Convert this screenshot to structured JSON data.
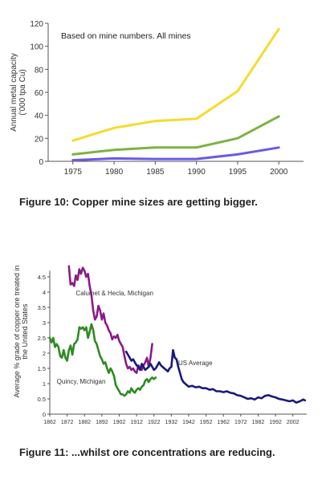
{
  "chart_data": [
    {
      "type": "line",
      "annotation": "Based on mine numbers. All mines",
      "ylabel": "Annual metal capacity ('000 tpa Cu)",
      "xlabel": "",
      "x": [
        1975,
        1980,
        1985,
        1990,
        1995,
        2000
      ],
      "xlim": [
        1972,
        2003
      ],
      "ylim": [
        0,
        120
      ],
      "x_ticks": [
        1975,
        1980,
        1985,
        1990,
        1995,
        2000
      ],
      "y_ticks": [
        0,
        20,
        40,
        60,
        80,
        100,
        120
      ],
      "grid": false,
      "legend": "none",
      "series": [
        {
          "color": "#f5dc2c",
          "values": [
            18,
            29,
            35,
            37,
            61,
            115
          ]
        },
        {
          "color": "#7cb342",
          "values": [
            6,
            10,
            12,
            12,
            20,
            39
          ]
        },
        {
          "color": "#6a5ae6",
          "values": [
            1,
            2.5,
            2,
            2,
            6,
            12
          ]
        }
      ]
    },
    {
      "type": "line",
      "ylabel": "Average % grade of copper ore treated in the United States",
      "xlabel": "",
      "xlim": [
        1862,
        2010
      ],
      "ylim": [
        0,
        5
      ],
      "x_ticks": [
        1862,
        1872,
        1882,
        1892,
        1902,
        1912,
        1922,
        1932,
        1942,
        1952,
        1962,
        1972,
        1982,
        1992,
        2002
      ],
      "y_ticks": [
        0,
        0.5,
        1,
        1.5,
        2,
        2.5,
        3,
        3.5,
        4,
        4.5
      ],
      "grid": false,
      "legend": "none",
      "series": [
        {
          "name": "Calumet & Hecla, Michigan",
          "color": "#8b1a8b",
          "points": [
            [
              1873,
              4.85
            ],
            [
              1874,
              4.25
            ],
            [
              1875,
              4.3
            ],
            [
              1876,
              4.2
            ],
            [
              1877,
              4.55
            ],
            [
              1878,
              4.4
            ],
            [
              1879,
              4.75
            ],
            [
              1880,
              4.6
            ],
            [
              1881,
              4.8
            ],
            [
              1882,
              4.7
            ],
            [
              1883,
              4.5
            ],
            [
              1884,
              4.6
            ],
            [
              1885,
              4.2
            ],
            [
              1886,
              3.9
            ],
            [
              1887,
              3.4
            ],
            [
              1888,
              3.1
            ],
            [
              1889,
              3.2
            ],
            [
              1890,
              3.55
            ],
            [
              1891,
              3.4
            ],
            [
              1892,
              3.1
            ],
            [
              1893,
              3.3
            ],
            [
              1894,
              3.0
            ],
            [
              1895,
              2.9
            ],
            [
              1896,
              2.75
            ],
            [
              1897,
              2.65
            ],
            [
              1898,
              2.45
            ],
            [
              1899,
              2.55
            ],
            [
              1900,
              2.5
            ],
            [
              1901,
              2.6
            ],
            [
              1902,
              2.4
            ],
            [
              1903,
              2.3
            ],
            [
              1904,
              2.2
            ],
            [
              1905,
              1.9
            ],
            [
              1906,
              1.65
            ],
            [
              1907,
              1.5
            ],
            [
              1908,
              1.55
            ],
            [
              1909,
              1.45
            ],
            [
              1910,
              1.5
            ],
            [
              1911,
              1.4
            ],
            [
              1912,
              1.35
            ],
            [
              1913,
              1.6
            ],
            [
              1914,
              1.5
            ],
            [
              1915,
              1.45
            ],
            [
              1916,
              1.6
            ],
            [
              1917,
              1.7
            ],
            [
              1918,
              1.85
            ],
            [
              1919,
              1.55
            ],
            [
              1920,
              1.85
            ],
            [
              1921,
              2.3
            ]
          ]
        },
        {
          "name": "Quincy, Michigan",
          "color": "#2e8b22",
          "points": [
            [
              1862,
              2.5
            ],
            [
              1863,
              2.35
            ],
            [
              1864,
              2.5
            ],
            [
              1865,
              2.2
            ],
            [
              1866,
              2.3
            ],
            [
              1867,
              2.2
            ],
            [
              1868,
              1.9
            ],
            [
              1869,
              1.85
            ],
            [
              1870,
              2.1
            ],
            [
              1871,
              1.85
            ],
            [
              1872,
              1.75
            ],
            [
              1873,
              2.1
            ],
            [
              1874,
              2.25
            ],
            [
              1875,
              1.95
            ],
            [
              1876,
              2.3
            ],
            [
              1877,
              2.35
            ],
            [
              1878,
              2.45
            ],
            [
              1879,
              2.85
            ],
            [
              1880,
              2.8
            ],
            [
              1881,
              2.85
            ],
            [
              1882,
              2.75
            ],
            [
              1883,
              2.85
            ],
            [
              1884,
              2.5
            ],
            [
              1885,
              2.7
            ],
            [
              1886,
              2.95
            ],
            [
              1887,
              2.75
            ],
            [
              1888,
              2.4
            ],
            [
              1889,
              2.3
            ],
            [
              1890,
              2.1
            ],
            [
              1891,
              1.9
            ],
            [
              1892,
              1.8
            ],
            [
              1893,
              1.65
            ],
            [
              1894,
              1.7
            ],
            [
              1895,
              1.5
            ],
            [
              1896,
              1.35
            ],
            [
              1897,
              1.5
            ],
            [
              1898,
              1.4
            ],
            [
              1899,
              1.25
            ],
            [
              1900,
              0.95
            ],
            [
              1901,
              0.85
            ],
            [
              1902,
              0.75
            ],
            [
              1903,
              0.65
            ],
            [
              1904,
              0.65
            ],
            [
              1905,
              0.6
            ],
            [
              1906,
              0.65
            ],
            [
              1907,
              0.75
            ],
            [
              1908,
              0.7
            ],
            [
              1909,
              0.85
            ],
            [
              1910,
              0.75
            ],
            [
              1911,
              0.7
            ],
            [
              1912,
              0.8
            ],
            [
              1913,
              0.85
            ],
            [
              1914,
              0.8
            ],
            [
              1915,
              0.9
            ],
            [
              1916,
              0.95
            ],
            [
              1917,
              1.1
            ],
            [
              1918,
              1.15
            ],
            [
              1919,
              1.05
            ],
            [
              1920,
              1.15
            ],
            [
              1921,
              1.2
            ],
            [
              1922,
              1.15
            ],
            [
              1923,
              1.2
            ]
          ]
        },
        {
          "name": "US Average",
          "color": "#1a1a7a",
          "points": [
            [
              1906,
              2.05
            ],
            [
              1907,
              1.95
            ],
            [
              1908,
              1.85
            ],
            [
              1909,
              1.75
            ],
            [
              1910,
              1.8
            ],
            [
              1911,
              1.7
            ],
            [
              1912,
              1.6
            ],
            [
              1913,
              1.55
            ],
            [
              1914,
              1.45
            ],
            [
              1915,
              1.65
            ],
            [
              1916,
              1.55
            ],
            [
              1917,
              1.45
            ],
            [
              1918,
              1.5
            ],
            [
              1919,
              1.55
            ],
            [
              1920,
              1.65
            ],
            [
              1921,
              1.55
            ],
            [
              1922,
              1.45
            ],
            [
              1923,
              1.5
            ],
            [
              1924,
              1.6
            ],
            [
              1925,
              1.7
            ],
            [
              1926,
              1.6
            ],
            [
              1927,
              1.55
            ],
            [
              1928,
              1.5
            ],
            [
              1929,
              1.45
            ],
            [
              1930,
              1.4
            ],
            [
              1931,
              1.5
            ],
            [
              1932,
              1.55
            ],
            [
              1933,
              2.1
            ],
            [
              1934,
              1.85
            ],
            [
              1935,
              1.8
            ],
            [
              1936,
              1.55
            ],
            [
              1937,
              1.35
            ],
            [
              1938,
              1.15
            ],
            [
              1939,
              1.05
            ],
            [
              1940,
              1.0
            ],
            [
              1941,
              0.95
            ],
            [
              1942,
              0.9
            ],
            [
              1944,
              0.93
            ],
            [
              1946,
              0.88
            ],
            [
              1948,
              0.9
            ],
            [
              1950,
              0.85
            ],
            [
              1952,
              0.85
            ],
            [
              1954,
              0.8
            ],
            [
              1956,
              0.82
            ],
            [
              1958,
              0.75
            ],
            [
              1960,
              0.75
            ],
            [
              1962,
              0.72
            ],
            [
              1964,
              0.75
            ],
            [
              1966,
              0.7
            ],
            [
              1968,
              0.68
            ],
            [
              1970,
              0.62
            ],
            [
              1972,
              0.6
            ],
            [
              1974,
              0.55
            ],
            [
              1976,
              0.5
            ],
            [
              1978,
              0.52
            ],
            [
              1980,
              0.48
            ],
            [
              1982,
              0.55
            ],
            [
              1984,
              0.52
            ],
            [
              1986,
              0.6
            ],
            [
              1988,
              0.62
            ],
            [
              1990,
              0.58
            ],
            [
              1992,
              0.55
            ],
            [
              1994,
              0.5
            ],
            [
              1996,
              0.48
            ],
            [
              1998,
              0.45
            ],
            [
              2000,
              0.42
            ],
            [
              2002,
              0.45
            ],
            [
              2004,
              0.38
            ],
            [
              2006,
              0.42
            ],
            [
              2008,
              0.48
            ],
            [
              2009,
              0.45
            ]
          ]
        }
      ]
    }
  ],
  "captions": {
    "figure10": "Figure 10: Copper mine sizes are getting bigger.",
    "figure11": "Figure 11: ...whilst ore concentrations are reducing."
  }
}
